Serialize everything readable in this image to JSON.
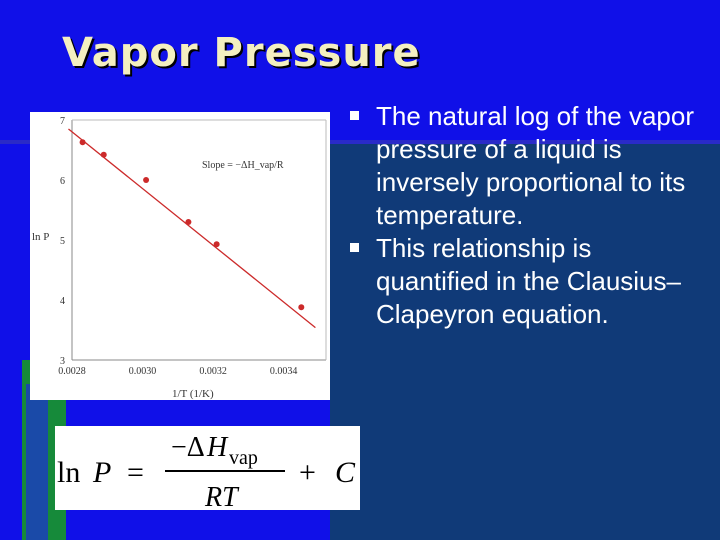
{
  "slide": {
    "title": "Vapor Pressure",
    "bullets": [
      "The natural log of the vapor pressure of a liquid is inversely proportional to its temperature.",
      "This relationship is quantified in the Clausius–Clapeyron equation."
    ]
  },
  "equation": {
    "lhs": "ln",
    "var": "P",
    "equals": "=",
    "numerator_sign": "−Δ",
    "numerator_var": "H",
    "numerator_sub": "vap",
    "denominator": "RT",
    "plus": "+",
    "constant": "C"
  },
  "chart_data": {
    "type": "scatter",
    "xlabel": "1/T  (1/K)",
    "ylabel": "ln P",
    "xlim": [
      0.0028,
      0.00352
    ],
    "ylim": [
      3,
      7
    ],
    "x_ticks": [
      "0.0028",
      "0.0030",
      "0.0032",
      "0.0034"
    ],
    "y_ticks": [
      "3",
      "4",
      "5",
      "6",
      "7"
    ],
    "annotation": "Slope = −ΔH_vap/R",
    "grid": false,
    "series": [
      {
        "x": [
          0.00283,
          0.00289,
          0.00301,
          0.00313,
          0.00321,
          0.00345
        ],
        "y": [
          6.63,
          6.42,
          6.0,
          5.3,
          4.93,
          3.88
        ]
      }
    ],
    "fit_line": {
      "x": [
        0.00279,
        0.00349
      ],
      "y": [
        6.85,
        3.54
      ]
    },
    "colors": {
      "points": "#cc2a2a",
      "line": "#cc2a2a"
    }
  },
  "colors": {
    "background": "#1010e8",
    "title": "#f4f0c0",
    "bullet_text": "#ffffff"
  }
}
